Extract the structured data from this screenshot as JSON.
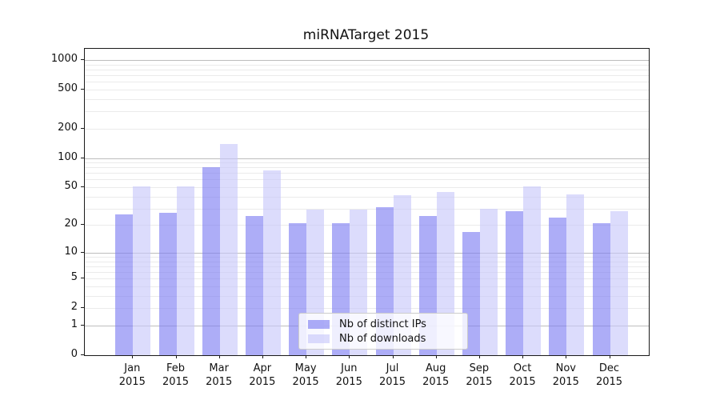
{
  "title": "miRNATarget 2015",
  "year_label": "2015",
  "months": [
    "Jan",
    "Feb",
    "Mar",
    "Apr",
    "May",
    "Jun",
    "Jul",
    "Aug",
    "Sep",
    "Oct",
    "Nov",
    "Dec"
  ],
  "legend": {
    "items": [
      {
        "label": "Nb of distinct IPs",
        "color": "rgba(122,122,242,0.62)"
      },
      {
        "label": "Nb of downloads",
        "color": "rgba(198,198,250,0.62)"
      }
    ]
  },
  "axes": {
    "y_ticks": [
      1000,
      500,
      200,
      100,
      50,
      20,
      10,
      5,
      2,
      1,
      0
    ],
    "decade_gridlines": [
      1,
      10,
      100,
      1000
    ],
    "minor_gridline_bases": [
      2,
      3,
      4,
      5,
      6,
      7,
      8,
      9
    ],
    "grid_color_major": "#bdbdbd",
    "grid_color_minor": "#ebebeb"
  },
  "chart_data": {
    "type": "bar",
    "title": "miRNATarget 2015",
    "categories": [
      "Jan 2015",
      "Feb 2015",
      "Mar 2015",
      "Apr 2015",
      "May 2015",
      "Jun 2015",
      "Jul 2015",
      "Aug 2015",
      "Sep 2015",
      "Oct 2015",
      "Nov 2015",
      "Dec 2015"
    ],
    "series": [
      {
        "name": "Nb of distinct IPs",
        "color": "#acacf7",
        "values": [
          26,
          27,
          80,
          25,
          21,
          21,
          31,
          25,
          17,
          28,
          24,
          21
        ]
      },
      {
        "name": "Nb of downloads",
        "color": "#dcdcfd",
        "values": [
          51,
          51,
          140,
          75,
          29,
          29,
          41,
          45,
          30,
          51,
          42,
          28
        ]
      }
    ],
    "yscale": "log10(value+1)",
    "yticks": [
      0,
      1,
      2,
      5,
      10,
      20,
      50,
      100,
      200,
      500,
      1000
    ],
    "ylim": [
      0,
      1300
    ],
    "xlabel": "",
    "ylabel": "",
    "grid": "horizontal",
    "legend_position": "lower center"
  }
}
